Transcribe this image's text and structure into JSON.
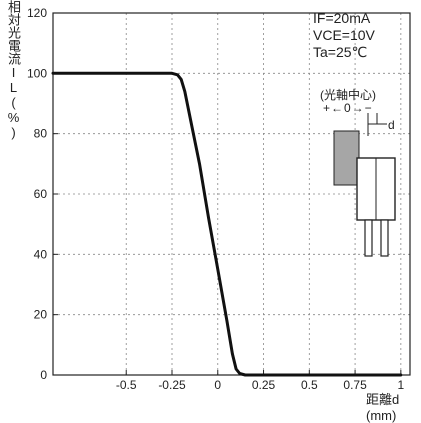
{
  "chart_data": {
    "type": "line",
    "ylabel_chars": [
      "相",
      "対",
      "光",
      "電",
      "流"
    ],
    "ylabel_symbol": "IL",
    "ylabel_unit": "(%)",
    "xlabel": "距離d (mm)",
    "x_ticks": [
      "-0.5",
      "-0.25",
      "0",
      "0.25",
      "0.5",
      "0.75",
      "1"
    ],
    "y_ticks": [
      "0",
      "20",
      "40",
      "60",
      "80",
      "100",
      "120"
    ],
    "xlim": [
      -0.9,
      1.05
    ],
    "ylim": [
      0,
      120
    ],
    "conditions": [
      "IF=20mA",
      "VCE=10V",
      "Ta=25℃"
    ],
    "inset": {
      "title": "(光軸中心)",
      "arrows": "+←0→−",
      "d_label": "d"
    },
    "series": [
      {
        "x": [
          -0.9,
          -0.25,
          -0.22,
          -0.2,
          -0.18,
          -0.15,
          -0.1,
          -0.05,
          0,
          0.05,
          0.08,
          0.1,
          0.12,
          0.15,
          1.0
        ],
        "y": [
          100,
          100,
          99.5,
          98,
          94,
          85,
          70,
          52,
          35,
          18,
          7,
          2,
          0.5,
          0,
          0
        ]
      }
    ]
  }
}
